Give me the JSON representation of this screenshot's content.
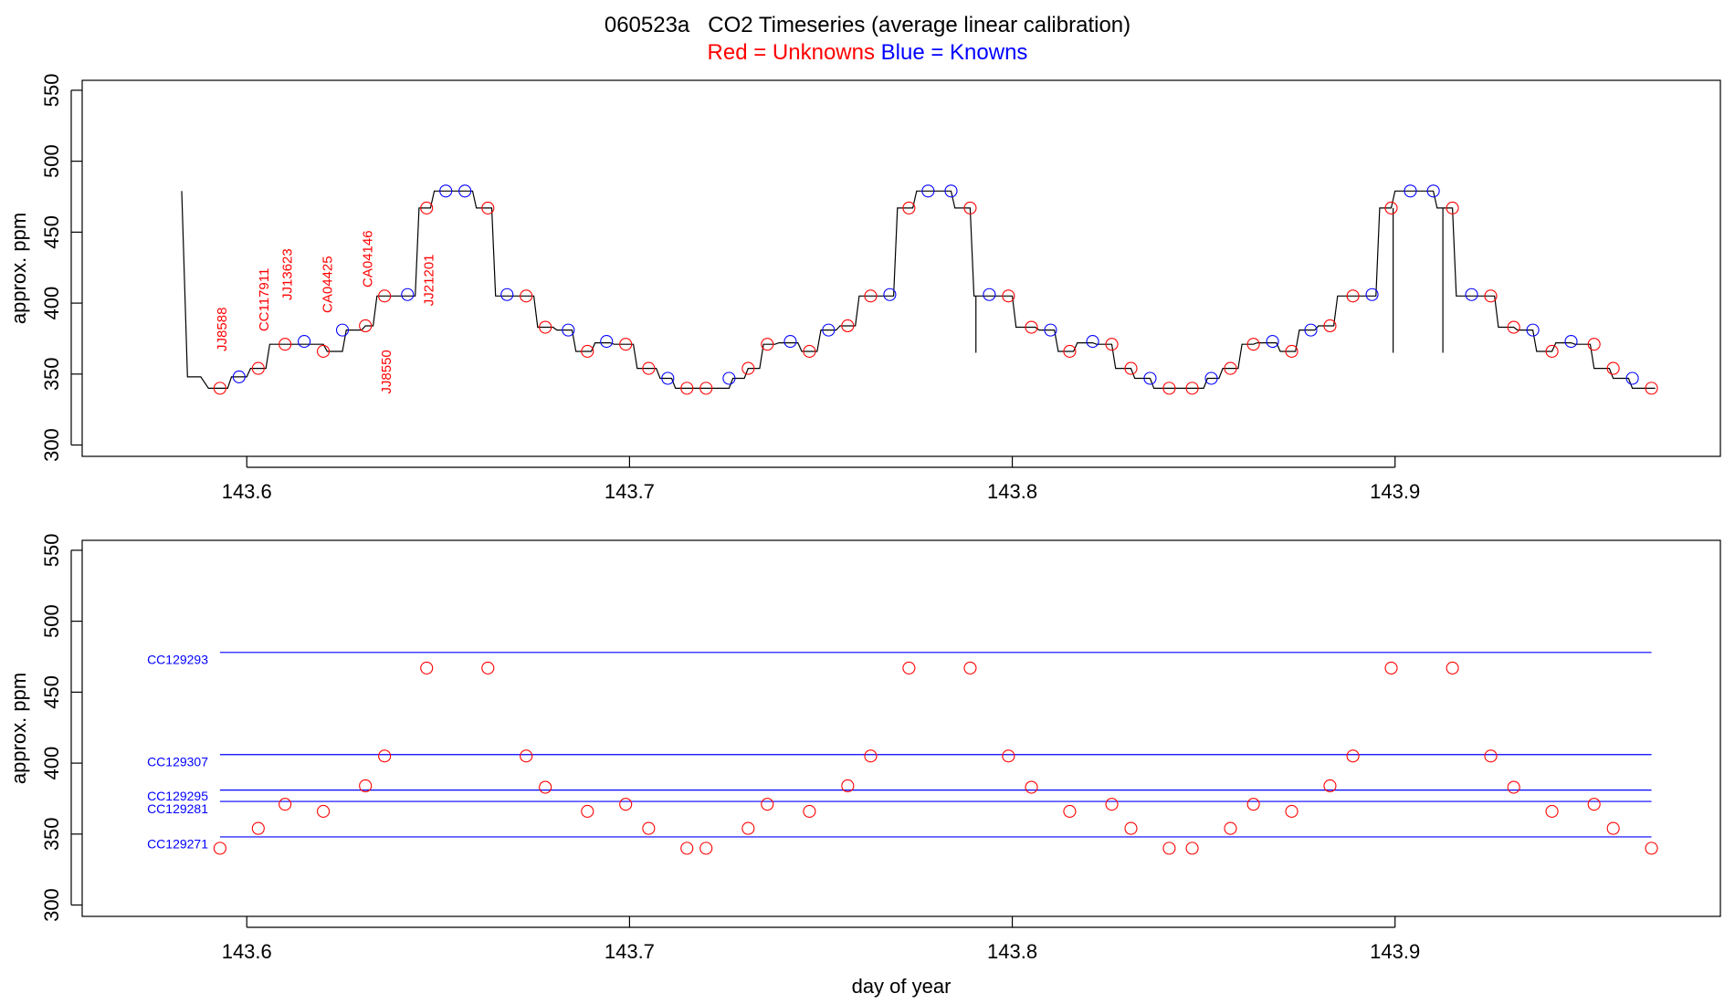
{
  "title": "060523a   CO2 Timeseries (average linear calibration)",
  "subtitle": {
    "red": "Red = Unknowns",
    "blue": "Blue = Knowns"
  },
  "colors": {
    "unknown": "#ff0000",
    "known": "#0000ff",
    "trace": "#000000"
  },
  "chart_data": [
    {
      "type": "line",
      "panel": "top",
      "ylabel": "approx. ppm",
      "xlabel": "",
      "xlim": [
        143.557,
        143.985
      ],
      "ylim": [
        292,
        557
      ],
      "x_ticks": [
        "143.6",
        "143.7",
        "143.8",
        "143.9"
      ],
      "y_ticks": [
        "300",
        "350",
        "400",
        "450",
        "500",
        "550"
      ],
      "trace": [
        [
          143.583,
          479
        ],
        [
          143.5845,
          348
        ],
        [
          143.588,
          348
        ],
        [
          143.59,
          340
        ],
        [
          143.595,
          340
        ],
        [
          143.596,
          348
        ],
        [
          143.6,
          348
        ],
        [
          143.601,
          354
        ],
        [
          143.605,
          354
        ],
        [
          143.606,
          371
        ],
        [
          143.62,
          371
        ],
        [
          143.621,
          366
        ],
        [
          143.625,
          366
        ],
        [
          143.626,
          381
        ],
        [
          143.63,
          381
        ],
        [
          143.631,
          384
        ],
        [
          143.633,
          384
        ],
        [
          143.634,
          405
        ],
        [
          143.644,
          405
        ],
        [
          143.645,
          467
        ],
        [
          143.648,
          467
        ],
        [
          143.649,
          479
        ],
        [
          143.659,
          479
        ],
        [
          143.66,
          467
        ],
        [
          143.664,
          467
        ],
        [
          143.665,
          405
        ],
        [
          143.675,
          405
        ],
        [
          143.676,
          383
        ],
        [
          143.68,
          383
        ],
        [
          143.681,
          381
        ],
        [
          143.685,
          381
        ],
        [
          143.686,
          366
        ],
        [
          143.69,
          366
        ],
        [
          143.691,
          372
        ],
        [
          143.695,
          372
        ],
        [
          143.696,
          371
        ],
        [
          143.701,
          371
        ],
        [
          143.702,
          354
        ],
        [
          143.707,
          354
        ],
        [
          143.708,
          347
        ],
        [
          143.711,
          347
        ],
        [
          143.712,
          340
        ],
        [
          143.726,
          340
        ],
        [
          143.727,
          347
        ],
        [
          143.73,
          347
        ],
        [
          143.731,
          354
        ],
        [
          143.734,
          354
        ],
        [
          143.735,
          371
        ],
        [
          143.738,
          371
        ],
        [
          143.739,
          372
        ],
        [
          143.744,
          372
        ],
        [
          143.745,
          366
        ],
        [
          143.749,
          366
        ],
        [
          143.75,
          381
        ],
        [
          143.754,
          381
        ],
        [
          143.755,
          384
        ],
        [
          143.759,
          384
        ],
        [
          143.76,
          405
        ],
        [
          143.769,
          405
        ],
        [
          143.77,
          467
        ],
        [
          143.774,
          467
        ],
        [
          143.775,
          479
        ],
        [
          143.784,
          479
        ],
        [
          143.785,
          467
        ],
        [
          143.789,
          467
        ],
        [
          143.79,
          405
        ],
        [
          143.8,
          405
        ],
        [
          143.801,
          383
        ],
        [
          143.806,
          383
        ],
        [
          143.807,
          381
        ],
        [
          143.811,
          381
        ],
        [
          143.812,
          366
        ],
        [
          143.816,
          366
        ],
        [
          143.817,
          372
        ],
        [
          143.821,
          372
        ],
        [
          143.822,
          371
        ],
        [
          143.826,
          371
        ],
        [
          143.827,
          354
        ],
        [
          143.831,
          354
        ],
        [
          143.832,
          347
        ],
        [
          143.836,
          347
        ],
        [
          143.837,
          340
        ],
        [
          143.85,
          340
        ],
        [
          143.851,
          347
        ],
        [
          143.854,
          347
        ],
        [
          143.855,
          354
        ],
        [
          143.859,
          354
        ],
        [
          143.86,
          371
        ],
        [
          143.863,
          371
        ],
        [
          143.864,
          372
        ],
        [
          143.869,
          372
        ],
        [
          143.87,
          366
        ],
        [
          143.874,
          366
        ],
        [
          143.875,
          381
        ],
        [
          143.879,
          381
        ],
        [
          143.88,
          384
        ],
        [
          143.884,
          384
        ],
        [
          143.885,
          405
        ],
        [
          143.895,
          405
        ],
        [
          143.896,
          467
        ],
        [
          143.899,
          467
        ],
        [
          143.9,
          479
        ],
        [
          143.91,
          479
        ],
        [
          143.911,
          467
        ],
        [
          143.915,
          467
        ],
        [
          143.916,
          405
        ],
        [
          143.926,
          405
        ],
        [
          143.927,
          383
        ],
        [
          143.931,
          383
        ],
        [
          143.932,
          381
        ],
        [
          143.936,
          381
        ],
        [
          143.937,
          366
        ],
        [
          143.941,
          366
        ],
        [
          143.942,
          372
        ],
        [
          143.946,
          372
        ],
        [
          143.947,
          371
        ],
        [
          143.951,
          371
        ],
        [
          143.952,
          354
        ],
        [
          143.956,
          354
        ],
        [
          143.957,
          347
        ],
        [
          143.961,
          347
        ],
        [
          143.962,
          340
        ],
        [
          143.968,
          340
        ]
      ],
      "spikes": [
        {
          "x": 143.7905,
          "y_from": 405,
          "y_to": 365
        },
        {
          "x": 143.8995,
          "y_from": 467,
          "y_to": 365
        },
        {
          "x": 143.9125,
          "y_from": 467,
          "y_to": 365
        }
      ],
      "unknowns": [
        [
          143.593,
          340
        ],
        [
          143.603,
          354
        ],
        [
          143.61,
          371
        ],
        [
          143.62,
          366
        ],
        [
          143.631,
          384
        ],
        [
          143.636,
          405
        ],
        [
          143.647,
          467
        ],
        [
          143.663,
          467
        ],
        [
          143.673,
          405
        ],
        [
          143.678,
          383
        ],
        [
          143.689,
          366
        ],
        [
          143.699,
          371
        ],
        [
          143.705,
          354
        ],
        [
          143.715,
          340
        ],
        [
          143.72,
          340
        ],
        [
          143.731,
          354
        ],
        [
          143.736,
          371
        ],
        [
          143.747,
          366
        ],
        [
          143.757,
          384
        ],
        [
          143.763,
          405
        ],
        [
          143.773,
          467
        ],
        [
          143.789,
          467
        ],
        [
          143.799,
          405
        ],
        [
          143.805,
          383
        ],
        [
          143.815,
          366
        ],
        [
          143.826,
          371
        ],
        [
          143.831,
          354
        ],
        [
          143.841,
          340
        ],
        [
          143.847,
          340
        ],
        [
          143.857,
          354
        ],
        [
          143.863,
          371
        ],
        [
          143.873,
          366
        ],
        [
          143.883,
          384
        ],
        [
          143.889,
          405
        ],
        [
          143.899,
          467
        ],
        [
          143.915,
          467
        ],
        [
          143.925,
          405
        ],
        [
          143.931,
          383
        ],
        [
          143.941,
          366
        ],
        [
          143.952,
          371
        ],
        [
          143.957,
          354
        ],
        [
          143.967,
          340
        ]
      ],
      "knowns": [
        [
          143.598,
          348
        ],
        [
          143.615,
          373
        ],
        [
          143.625,
          381
        ],
        [
          143.642,
          406
        ],
        [
          143.652,
          479
        ],
        [
          143.657,
          479
        ],
        [
          143.668,
          406
        ],
        [
          143.684,
          381
        ],
        [
          143.694,
          373
        ],
        [
          143.71,
          347
        ],
        [
          143.726,
          347
        ],
        [
          143.742,
          373
        ],
        [
          143.752,
          381
        ],
        [
          143.768,
          406
        ],
        [
          143.778,
          479
        ],
        [
          143.784,
          479
        ],
        [
          143.794,
          406
        ],
        [
          143.81,
          381
        ],
        [
          143.821,
          373
        ],
        [
          143.836,
          347
        ],
        [
          143.852,
          347
        ],
        [
          143.868,
          373
        ],
        [
          143.878,
          381
        ],
        [
          143.894,
          406
        ],
        [
          143.904,
          479
        ],
        [
          143.91,
          479
        ],
        [
          143.92,
          406
        ],
        [
          143.936,
          381
        ],
        [
          143.946,
          373
        ],
        [
          143.962,
          347
        ]
      ],
      "sample_labels": [
        {
          "text": "JJ8588",
          "x": 143.5935,
          "y": 366
        },
        {
          "text": "CC117911",
          "x": 143.6045,
          "y": 380
        },
        {
          "text": "JJ13623",
          "x": 143.6105,
          "y": 402
        },
        {
          "text": "CA04425",
          "x": 143.621,
          "y": 393
        },
        {
          "text": "CA04146",
          "x": 143.6315,
          "y": 411
        },
        {
          "text": "JJ8550",
          "x": 143.6365,
          "y": 336
        },
        {
          "text": "JJ21201",
          "x": 143.6475,
          "y": 398
        }
      ]
    },
    {
      "type": "scatter",
      "panel": "bottom",
      "ylabel": "approx. ppm",
      "xlabel": "day of year",
      "xlim": [
        143.557,
        143.985
      ],
      "ylim": [
        292,
        557
      ],
      "x_ticks": [
        "143.6",
        "143.7",
        "143.8",
        "143.9"
      ],
      "y_ticks": [
        "300",
        "350",
        "400",
        "450",
        "500",
        "550"
      ],
      "reference_lines": [
        {
          "name": "CC129293",
          "y": 478,
          "label_y": 473
        },
        {
          "name": "CC129307",
          "y": 406,
          "label_y": 401
        },
        {
          "name": "CC129295",
          "y": 381,
          "label_y": 377
        },
        {
          "name": "CC129281",
          "y": 373,
          "label_y": 368
        },
        {
          "name": "CC129271",
          "y": 348,
          "label_y": 343
        }
      ],
      "reference_x_range": [
        143.593,
        143.967
      ],
      "unknowns": [
        [
          143.593,
          340
        ],
        [
          143.603,
          354
        ],
        [
          143.61,
          371
        ],
        [
          143.62,
          366
        ],
        [
          143.631,
          384
        ],
        [
          143.636,
          405
        ],
        [
          143.647,
          467
        ],
        [
          143.663,
          467
        ],
        [
          143.673,
          405
        ],
        [
          143.678,
          383
        ],
        [
          143.689,
          366
        ],
        [
          143.699,
          371
        ],
        [
          143.705,
          354
        ],
        [
          143.715,
          340
        ],
        [
          143.72,
          340
        ],
        [
          143.731,
          354
        ],
        [
          143.736,
          371
        ],
        [
          143.747,
          366
        ],
        [
          143.757,
          384
        ],
        [
          143.763,
          405
        ],
        [
          143.773,
          467
        ],
        [
          143.789,
          467
        ],
        [
          143.799,
          405
        ],
        [
          143.805,
          383
        ],
        [
          143.815,
          366
        ],
        [
          143.826,
          371
        ],
        [
          143.831,
          354
        ],
        [
          143.841,
          340
        ],
        [
          143.847,
          340
        ],
        [
          143.857,
          354
        ],
        [
          143.863,
          371
        ],
        [
          143.873,
          366
        ],
        [
          143.883,
          384
        ],
        [
          143.889,
          405
        ],
        [
          143.899,
          467
        ],
        [
          143.915,
          467
        ],
        [
          143.925,
          405
        ],
        [
          143.931,
          383
        ],
        [
          143.941,
          366
        ],
        [
          143.952,
          371
        ],
        [
          143.957,
          354
        ],
        [
          143.967,
          340
        ]
      ]
    }
  ]
}
